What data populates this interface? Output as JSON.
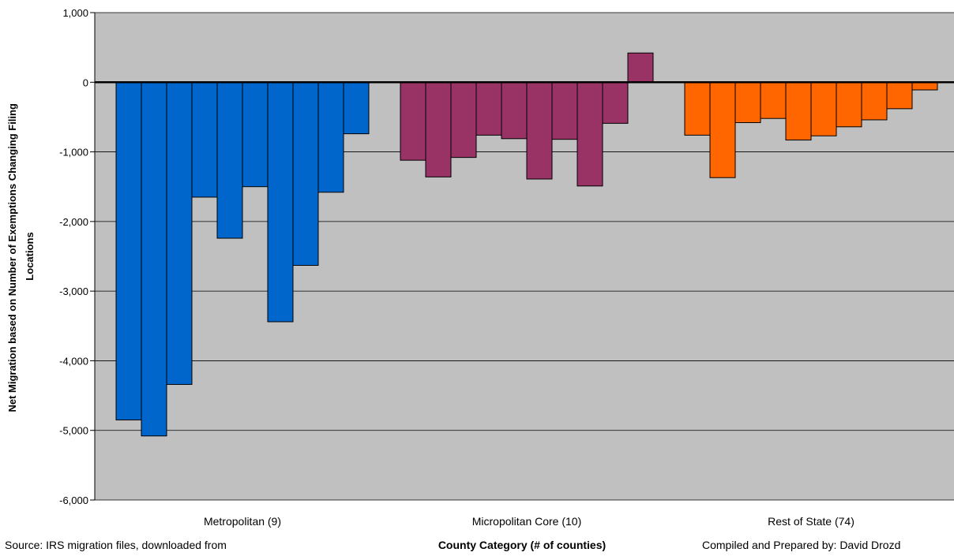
{
  "chart_data": {
    "type": "bar",
    "ylabel_line1": "Net Migration based on Number of Exemptions Changing Filing",
    "ylabel_line2": "Locations",
    "xlabel": "County Category (# of counties)",
    "ylim": [
      -6000,
      1000
    ],
    "yticks": [
      1000,
      0,
      -1000,
      -2000,
      -3000,
      -4000,
      -5000,
      -6000
    ],
    "ytick_labels": [
      "1,000",
      "0",
      "-1,000",
      "-2,000",
      "-3,000",
      "-4,000",
      "-5,000",
      "-6,000"
    ],
    "grid": true,
    "groups": [
      {
        "label": "Metropolitan (9)",
        "color": "#0066CC",
        "values": [
          -4850,
          -5080,
          -4340,
          -1650,
          -2240,
          -1500,
          -3440,
          -2630,
          -1580,
          -740
        ]
      },
      {
        "label": "Micropolitan Core (10)",
        "color": "#993366",
        "values": [
          -1120,
          -1360,
          -1080,
          -760,
          -810,
          -1390,
          -820,
          -1490,
          -590,
          420
        ]
      },
      {
        "label": "Rest of State (74)",
        "color": "#FF6600",
        "values": [
          -760,
          -1370,
          -580,
          -520,
          -830,
          -770,
          -640,
          -540,
          -380,
          -110
        ]
      }
    ]
  },
  "notes": {
    "source_line1": "Source: IRS migration files, downloaded from",
    "compiled": "Compiled and Prepared by: David Drozd"
  }
}
